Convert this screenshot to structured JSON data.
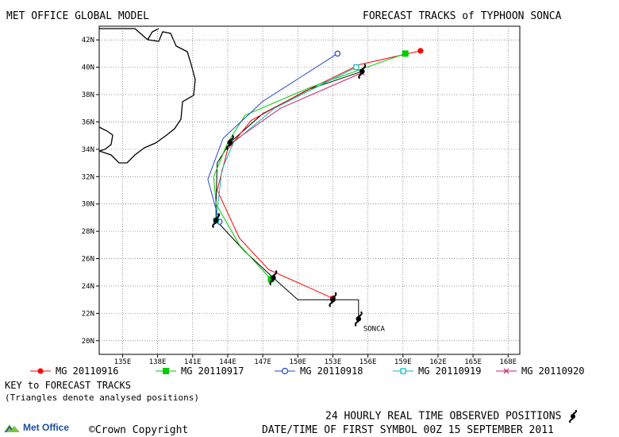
{
  "header": {
    "left_title": "MET OFFICE GLOBAL MODEL",
    "right_title": "FORECAST TRACKS of TYPHOON SONCA"
  },
  "chart_data": {
    "type": "line",
    "x_ticks": [
      "135E",
      "138E",
      "141E",
      "144E",
      "147E",
      "150E",
      "153E",
      "156E",
      "159E",
      "162E",
      "165E",
      "168E"
    ],
    "y_ticks": [
      "20N",
      "22N",
      "24N",
      "26N",
      "28N",
      "30N",
      "32N",
      "34N",
      "36N",
      "38N",
      "40N",
      "42N"
    ],
    "xlim": [
      133,
      169
    ],
    "ylim": [
      19,
      43
    ],
    "storm_label": "SONCA",
    "observed": {
      "name": "24 HOURLY REAL TIME OBSERVED POSITIONS",
      "color": "#000000",
      "points": [
        [
          155.2,
          21.6
        ],
        [
          155.2,
          23.0
        ],
        [
          153.0,
          23.0
        ],
        [
          150.0,
          23.0
        ],
        [
          147.9,
          24.6
        ],
        [
          145.5,
          26.5
        ],
        [
          143.0,
          28.8
        ],
        [
          143.0,
          30.0
        ],
        [
          143.1,
          33.0
        ],
        [
          144.2,
          34.5
        ],
        [
          147.0,
          36.6
        ],
        [
          151.0,
          38.4
        ],
        [
          155.5,
          39.7
        ]
      ],
      "symbol_points": [
        [
          155.2,
          21.6
        ],
        [
          153.0,
          23.0
        ],
        [
          147.9,
          24.6
        ],
        [
          143.0,
          28.8
        ],
        [
          144.2,
          34.5
        ],
        [
          155.5,
          39.7
        ]
      ]
    },
    "series": [
      {
        "name": "MG 20110916",
        "color": "#ff0000",
        "marker": "dot",
        "points": [
          [
            153.0,
            23.1
          ],
          [
            147.5,
            25.2
          ],
          [
            145.0,
            27.5
          ],
          [
            143.1,
            31.0
          ],
          [
            144.0,
            34.0
          ],
          [
            146.0,
            36.1
          ],
          [
            150.5,
            38.2
          ],
          [
            155.3,
            40.2
          ],
          [
            160.5,
            41.2
          ]
        ]
      },
      {
        "name": "MG 20110917",
        "color": "#00cc00",
        "marker": "square",
        "points": [
          [
            147.7,
            24.5
          ],
          [
            145.0,
            27.0
          ],
          [
            143.0,
            30.0
          ],
          [
            142.8,
            32.0
          ],
          [
            144.0,
            34.5
          ],
          [
            145.5,
            36.5
          ],
          [
            151.0,
            38.5
          ],
          [
            159.2,
            41.0
          ]
        ]
      },
      {
        "name": "MG 20110918",
        "color": "#2244cc",
        "marker": "circle",
        "points": [
          [
            143.3,
            28.7
          ],
          [
            142.3,
            31.8
          ],
          [
            143.6,
            34.8
          ],
          [
            147.0,
            37.5
          ],
          [
            153.4,
            41.0
          ]
        ]
      },
      {
        "name": "MG 20110919",
        "color": "#00bcbc",
        "marker": "open-square",
        "points": [
          [
            143.0,
            28.8
          ],
          [
            143.5,
            32.5
          ],
          [
            144.5,
            34.5
          ],
          [
            148.0,
            37.0
          ],
          [
            155.0,
            40.0
          ]
        ]
      },
      {
        "name": "MG 20110920",
        "color": "#cc2266",
        "marker": "x",
        "points": [
          [
            144.2,
            34.4
          ],
          [
            148.5,
            37.0
          ],
          [
            155.5,
            39.6
          ]
        ]
      }
    ]
  },
  "legend": {
    "items": [
      {
        "label": "MG 20110916",
        "color": "#ff0000",
        "marker": "dot"
      },
      {
        "label": "MG 20110917",
        "color": "#00cc00",
        "marker": "square"
      },
      {
        "label": "MG 20110918",
        "color": "#2244cc",
        "marker": "circle"
      },
      {
        "label": "MG 20110919",
        "color": "#00bcbc",
        "marker": "open-square"
      },
      {
        "label": "MG 20110920",
        "color": "#cc2266",
        "marker": "x"
      }
    ]
  },
  "footer": {
    "key_title": "KEY to FORECAST TRACKS",
    "key_note": "(Triangles denote analysed positions)",
    "observed_label": "24 HOURLY REAL TIME OBSERVED POSITIONS",
    "datetime": "DATE/TIME OF FIRST SYMBOL 00Z 15 SEPTEMBER 2011",
    "copyright": "Crown Copyright",
    "logo_text": "Met Office"
  }
}
